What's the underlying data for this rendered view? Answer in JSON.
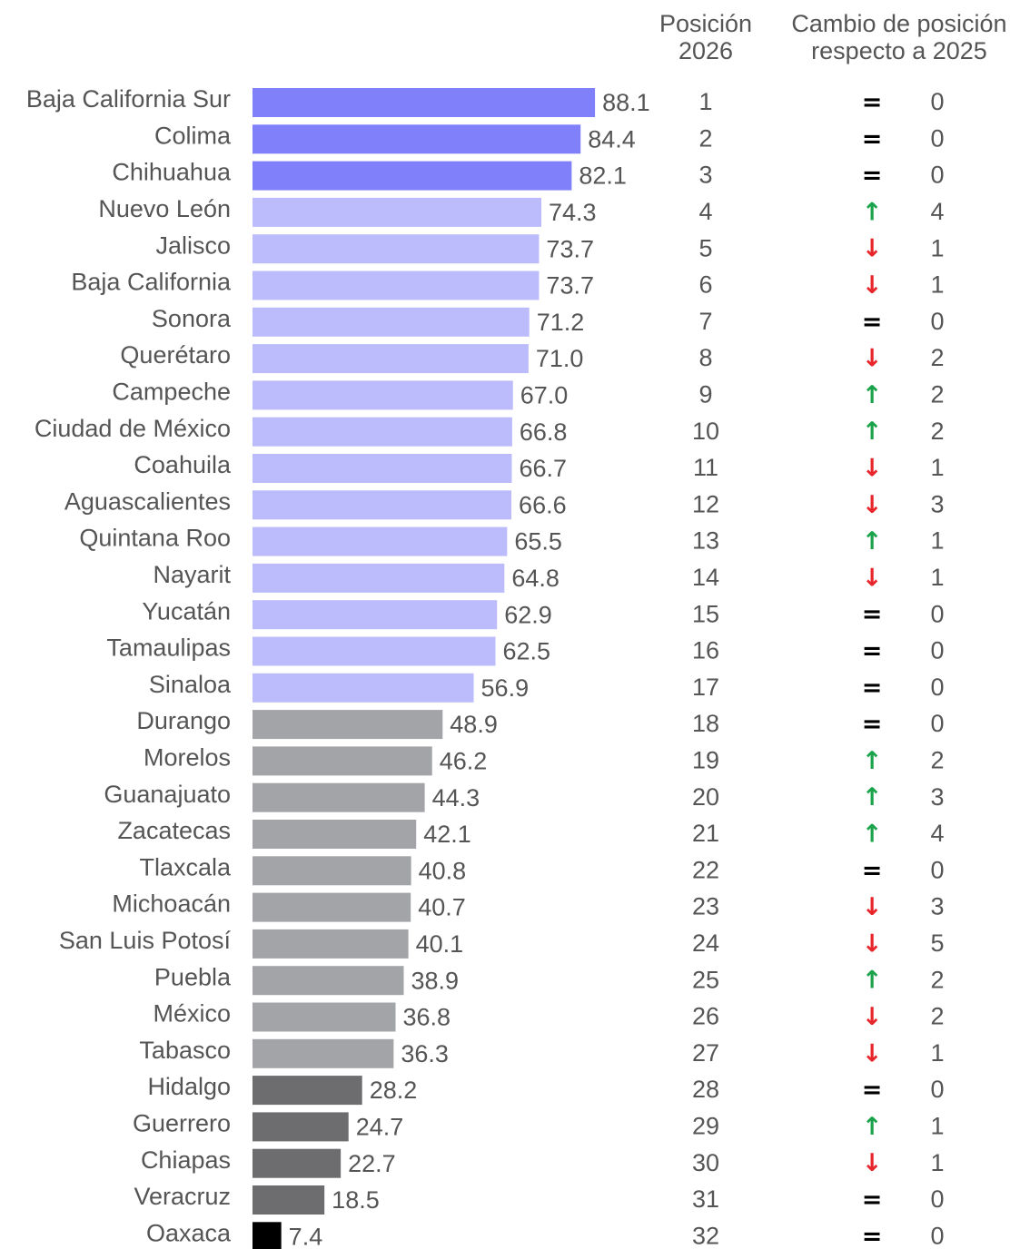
{
  "chart_data": {
    "type": "bar",
    "orientation": "horizontal",
    "position_header": [
      "Posición",
      "2026"
    ],
    "change_header": [
      "Cambio de posición",
      "respecto a 2025"
    ],
    "categories": [
      "Baja California Sur",
      "Colima",
      "Chihuahua",
      "Nuevo León",
      "Jalisco",
      "Baja California",
      "Sonora",
      "Querétaro",
      "Campeche",
      "Ciudad de México",
      "Coahuila",
      "Aguascalientes",
      "Quintana Roo",
      "Nayarit",
      "Yucatán",
      "Tamaulipas",
      "Sinaloa",
      "Durango",
      "Morelos",
      "Guanajuato",
      "Zacatecas",
      "Tlaxcala",
      "Michoacán",
      "San Luis Potosí",
      "Puebla",
      "México",
      "Tabasco",
      "Hidalgo",
      "Guerrero",
      "Chiapas",
      "Veracruz",
      "Oaxaca"
    ],
    "values": [
      88.1,
      84.4,
      82.1,
      74.3,
      73.7,
      73.7,
      71.2,
      71.0,
      67.0,
      66.8,
      66.7,
      66.6,
      65.5,
      64.8,
      62.9,
      62.5,
      56.9,
      48.9,
      46.2,
      44.3,
      42.1,
      40.8,
      40.7,
      40.1,
      38.9,
      36.8,
      36.3,
      28.2,
      24.7,
      22.7,
      18.5,
      7.4
    ],
    "value_labels": [
      "88.1",
      "84.4",
      "82.1",
      "74.3",
      "73.7",
      "73.7",
      "71.2",
      "71.0",
      "67.0",
      "66.8",
      "66.7",
      "66.6",
      "65.5",
      "64.8",
      "62.9",
      "62.5",
      "56.9",
      "48.9",
      "46.2",
      "44.3",
      "42.1",
      "40.8",
      "40.7",
      "40.1",
      "38.9",
      "36.8",
      "36.3",
      "28.2",
      "24.7",
      "22.7",
      "18.5",
      "7.4"
    ],
    "colors": [
      "#8080fa",
      "#8080fa",
      "#8080fa",
      "#bcbcfc",
      "#bcbcfc",
      "#bcbcfc",
      "#bcbcfc",
      "#bcbcfc",
      "#bcbcfc",
      "#bcbcfc",
      "#bcbcfc",
      "#bcbcfc",
      "#bcbcfc",
      "#bcbcfc",
      "#bcbcfc",
      "#bcbcfc",
      "#bcbcfc",
      "#a3a4a8",
      "#a3a4a8",
      "#a3a4a8",
      "#a3a4a8",
      "#a3a4a8",
      "#a3a4a8",
      "#a3a4a8",
      "#a3a4a8",
      "#a3a4a8",
      "#a3a4a8",
      "#6d6d6f",
      "#6d6d6f",
      "#6d6d6f",
      "#6d6d6f",
      "#000000"
    ],
    "positions": [
      1,
      2,
      3,
      4,
      5,
      6,
      7,
      8,
      9,
      10,
      11,
      12,
      13,
      14,
      15,
      16,
      17,
      18,
      19,
      20,
      21,
      22,
      23,
      24,
      25,
      26,
      27,
      28,
      29,
      30,
      31,
      32
    ],
    "change_symbols": [
      "=",
      "=",
      "=",
      "↑",
      "↓",
      "↓",
      "=",
      "↓",
      "↑",
      "↑",
      "↓",
      "↓",
      "↑",
      "↓",
      "=",
      "=",
      "=",
      "=",
      "↑",
      "↑",
      "↑",
      "=",
      "↓",
      "↓",
      "↑",
      "↓",
      "↓",
      "=",
      "↑",
      "↓",
      "=",
      "="
    ],
    "change_symbol_colors": [
      "#000000",
      "#000000",
      "#000000",
      "#1aa34a",
      "#e8252b",
      "#e8252b",
      "#000000",
      "#e8252b",
      "#1aa34a",
      "#1aa34a",
      "#e8252b",
      "#e8252b",
      "#1aa34a",
      "#e8252b",
      "#000000",
      "#000000",
      "#000000",
      "#000000",
      "#1aa34a",
      "#1aa34a",
      "#1aa34a",
      "#000000",
      "#e8252b",
      "#e8252b",
      "#1aa34a",
      "#e8252b",
      "#e8252b",
      "#000000",
      "#1aa34a",
      "#e8252b",
      "#000000",
      "#000000"
    ],
    "changes": [
      0,
      0,
      0,
      4,
      1,
      1,
      0,
      2,
      2,
      2,
      1,
      3,
      1,
      1,
      0,
      0,
      0,
      0,
      2,
      3,
      4,
      0,
      3,
      5,
      2,
      2,
      1,
      0,
      1,
      1,
      0,
      0
    ]
  }
}
